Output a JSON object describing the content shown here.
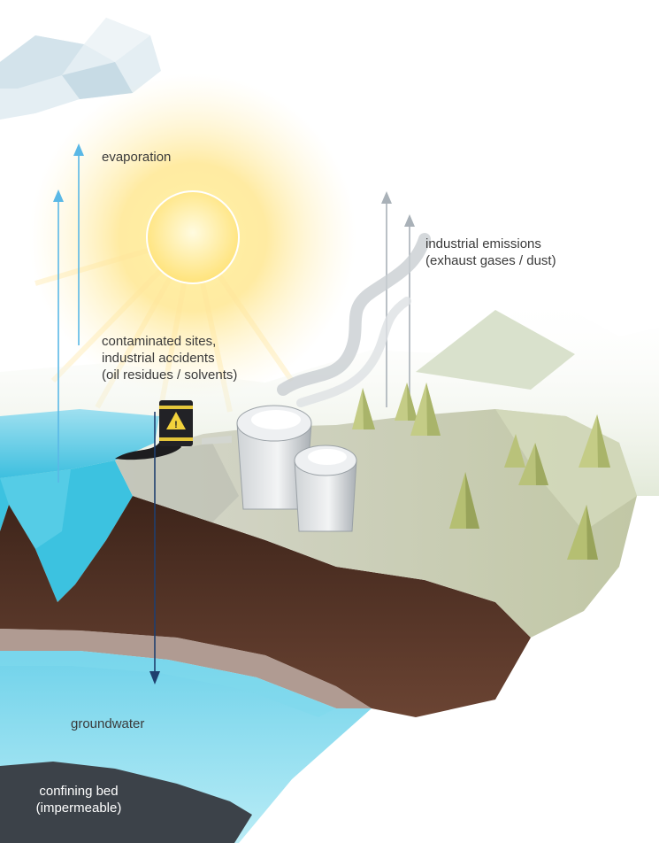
{
  "labels": {
    "evaporation": "evaporation",
    "industrial_emissions": [
      "industrial emissions",
      "(exhaust gases / dust)"
    ],
    "contaminated_sites": [
      "contaminated sites,",
      "industrial accidents",
      "(oil residues / solvents)"
    ],
    "groundwater": "groundwater",
    "confining_bed": [
      "confining bed",
      "(impermeable)"
    ]
  },
  "icons": {
    "sun": "sun-icon",
    "cloud": "cloud-icon",
    "barrel": "hazard-barrel-icon",
    "tanks": "storage-tank-icon",
    "trees": "tree-icon"
  },
  "colors": {
    "sky_arrow": "#5ab8e6",
    "emission_arrow": "#a9b1b8",
    "seepage_arrow": "#1f3f6e",
    "water": "#4fc7e3",
    "soil": "#4a2e22",
    "land": "#c9ccb6",
    "confining_bed": "#3c4249",
    "sun": "#ffe880"
  }
}
